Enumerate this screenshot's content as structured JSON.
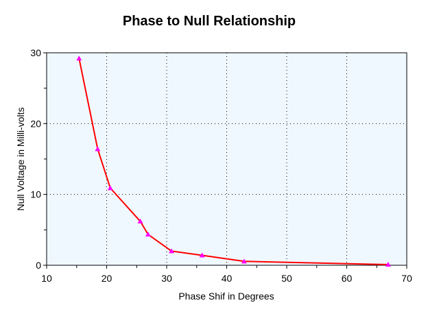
{
  "chart_data": {
    "type": "line",
    "title": "Phase to Null Relationship",
    "xlabel": "Phase Shif in Degrees",
    "ylabel": "Null Voltage in Milli-volts",
    "xlim": [
      10,
      70
    ],
    "ylim": [
      0,
      30
    ],
    "xticks": [
      10,
      20,
      30,
      40,
      50,
      60,
      70
    ],
    "yticks": [
      0,
      10,
      20,
      30
    ],
    "grid": true,
    "legend": "none",
    "colors": {
      "line": "#ff0000",
      "marker": "#ff00ff",
      "plot_bg": "#f0f8ff"
    },
    "marker": "triangle",
    "series": [
      {
        "x": [
          15.4,
          18.5,
          20.6,
          25.6,
          26.9,
          30.8,
          35.9,
          42.9,
          66.9
        ],
        "y": [
          29.2,
          16.4,
          10.9,
          6.2,
          4.35,
          2.0,
          1.4,
          0.55,
          0.1
        ]
      }
    ]
  }
}
